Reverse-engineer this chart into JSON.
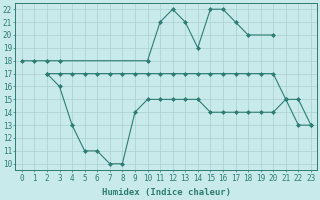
{
  "line1_x": [
    0,
    1,
    2,
    3,
    10,
    11,
    12,
    13,
    14,
    15,
    16,
    17,
    18,
    20
  ],
  "line1_y": [
    18,
    18,
    18,
    18,
    18,
    21,
    22,
    21,
    19,
    22,
    22,
    21,
    20,
    20
  ],
  "line2_x": [
    2,
    3,
    4,
    5,
    6,
    7,
    8,
    9,
    10,
    11,
    12,
    13,
    14,
    15,
    16,
    17,
    18,
    19,
    20,
    21,
    22,
    23
  ],
  "line2_y": [
    17,
    17,
    17,
    17,
    17,
    17,
    17,
    17,
    17,
    17,
    17,
    17,
    17,
    17,
    17,
    17,
    17,
    17,
    17,
    15,
    15,
    13
  ],
  "line3_x": [
    2,
    3,
    4,
    5,
    6,
    7,
    8,
    9,
    10,
    11,
    12,
    13,
    14,
    15,
    16,
    17,
    18,
    19,
    20,
    21,
    22,
    23
  ],
  "line3_y": [
    17,
    16,
    13,
    11,
    11,
    10,
    10,
    14,
    15,
    15,
    15,
    15,
    15,
    14,
    14,
    14,
    14,
    14,
    14,
    15,
    13,
    13
  ],
  "color": "#2e7d72",
  "bg_color": "#c8eaea",
  "grid_color": "#a8d0d0",
  "xlabel": "Humidex (Indice chaleur)",
  "xlim": [
    -0.5,
    23.5
  ],
  "ylim": [
    9.5,
    22.5
  ],
  "xticks": [
    0,
    1,
    2,
    3,
    4,
    5,
    6,
    7,
    8,
    9,
    10,
    11,
    12,
    13,
    14,
    15,
    16,
    17,
    18,
    19,
    20,
    21,
    22,
    23
  ],
  "yticks": [
    10,
    11,
    12,
    13,
    14,
    15,
    16,
    17,
    18,
    19,
    20,
    21,
    22
  ]
}
